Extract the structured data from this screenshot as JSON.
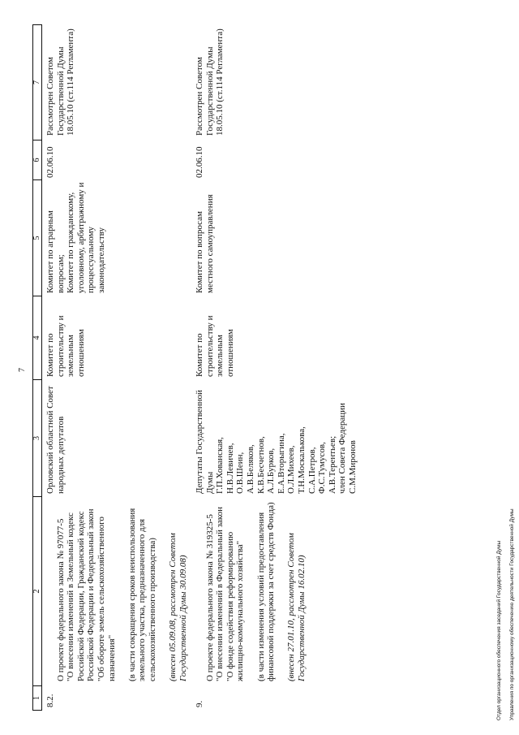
{
  "page_number": "7",
  "table": {
    "headers": [
      "1",
      "2",
      "3",
      "4",
      "5",
      "6",
      "7"
    ],
    "rows": [
      {
        "num": "8.2.",
        "title": "О проекте федерального закона № 97077-5\n\"О внесении изменений в Земельный кодекс Российской Федерации, Гражданский кодекс Российской Федерации и Федеральный закон \"Об обороте земель сельскохозяйственного назначения\"",
        "note": "(в части сокращения сроков неиспользования земельного участка, предназначенного для сельскохозяйственного производства)",
        "introduced": "(внесен 05.09.08, рассмотрен Советом Государственной Думы 30.09.08)",
        "initiator": "Орловский областной Совет народных депутатов",
        "committee": "Комитет по строительству и земельным отношениям",
        "co_committees": "Комитет по аграрным вопросам;\nКомитет по гражданскому, уголовному, арбитражному и процессуальному законодательству",
        "date": "02.06.10",
        "status": "Рассмотрен Советом Государственной Думы 18.05.10 (ст.114 Регламента)"
      },
      {
        "num": "9.",
        "title": "О проекте федерального закона № 319325-5\n\"О внесении изменений в Федеральный закон \"О фонде содействия реформированию жилищно-коммунального хозяйства\"",
        "note": "(в части изменения условий предоставления финансовой поддержки за счет средств Фонда)",
        "introduced": "(внесен 27.01.10, рассмотрен Советом Государственной Думы 16.02.10)",
        "initiator": "Депутаты Государственной Думы\nГ.П.Хованская,\nН.В.Левичев,\nО.В.Шеин,\nА.В.Беляков,\nК.В.Бесчетнов,\nА.Л.Бурков,\nЕ.А.Вторыгина,\nО.Л.Михеев,\nТ.Н.Москалькова,\nС.А.Петров,\nФ.С.Тумусов,\nА.В.Терентьев;\nчлен Совета Федерации\nС.М.Миронов",
        "committee": "Комитет по строительству и земельным отношениям",
        "co_committees": "Комитет по вопросам местного самоуправления",
        "date": "02.06.10",
        "status": "Рассмотрен Советом Государственной Думы 18.05.10 (ст.114 Регламента)"
      }
    ]
  },
  "footer": {
    "line1": "Отдел организационного обеспечения заседаний Государственной Думы",
    "line2": "Управления по организационному обеспечению деятельности Государственной Думы"
  }
}
